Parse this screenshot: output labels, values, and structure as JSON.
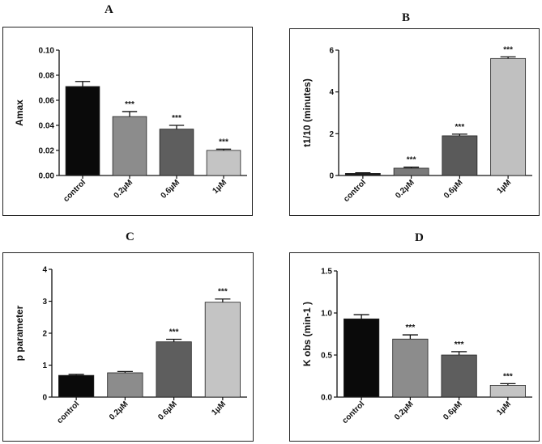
{
  "chart_data": [
    {
      "type": "bar",
      "panel": "A",
      "categories": [
        "control",
        "0.2µM",
        "0.6µM",
        "1µM"
      ],
      "values": [
        0.071,
        0.047,
        0.037,
        0.02
      ],
      "errors": [
        0.004,
        0.004,
        0.003,
        0.001
      ],
      "significance": [
        "",
        "***",
        "***",
        "***"
      ],
      "ylabel": "Amax",
      "ylim": [
        0,
        0.1
      ],
      "yticks": [
        "0.00",
        "0.02",
        "0.04",
        "0.06",
        "0.08",
        "0.10"
      ],
      "colors": [
        "#0a0a0a",
        "#8c8c8c",
        "#5e5e5e",
        "#c4c4c4"
      ]
    },
    {
      "type": "bar",
      "panel": "B",
      "categories": [
        "control",
        "0.2µM",
        "0.6µM",
        "1µM"
      ],
      "values": [
        0.1,
        0.35,
        1.9,
        5.6
      ],
      "errors": [
        0.03,
        0.05,
        0.08,
        0.08
      ],
      "significance": [
        "",
        "***",
        "***",
        "***"
      ],
      "ylabel": "t1/10 (minutes)",
      "ylim": [
        0,
        6
      ],
      "yticks": [
        "0",
        "2",
        "4",
        "6"
      ],
      "colors": [
        "#1a1a1a",
        "#7a7a7a",
        "#5a5a5a",
        "#c0c0c0"
      ]
    },
    {
      "type": "bar",
      "panel": "C",
      "categories": [
        "control",
        "0.2µM",
        "0.6µM",
        "1µM"
      ],
      "values": [
        0.68,
        0.76,
        1.73,
        2.97
      ],
      "errors": [
        0.03,
        0.04,
        0.08,
        0.1
      ],
      "significance": [
        "",
        "",
        "***",
        "***"
      ],
      "ylabel": "p parameter",
      "ylim": [
        0,
        4
      ],
      "yticks": [
        "0",
        "1",
        "2",
        "3",
        "4"
      ],
      "colors": [
        "#0a0a0a",
        "#8c8c8c",
        "#5e5e5e",
        "#c4c4c4"
      ]
    },
    {
      "type": "bar",
      "panel": "D",
      "categories": [
        "control",
        "0.2µM",
        "0.6µM",
        "1µM"
      ],
      "values": [
        0.93,
        0.69,
        0.5,
        0.14
      ],
      "errors": [
        0.05,
        0.05,
        0.04,
        0.02
      ],
      "significance": [
        "",
        "***",
        "***",
        "***"
      ],
      "ylabel": "K obs (min-1 )",
      "ylim": [
        0,
        1.5
      ],
      "yticks": [
        "0.0",
        "0.5",
        "1.0",
        "1.5"
      ],
      "colors": [
        "#0a0a0a",
        "#8c8c8c",
        "#5e5e5e",
        "#c4c4c4"
      ]
    }
  ]
}
